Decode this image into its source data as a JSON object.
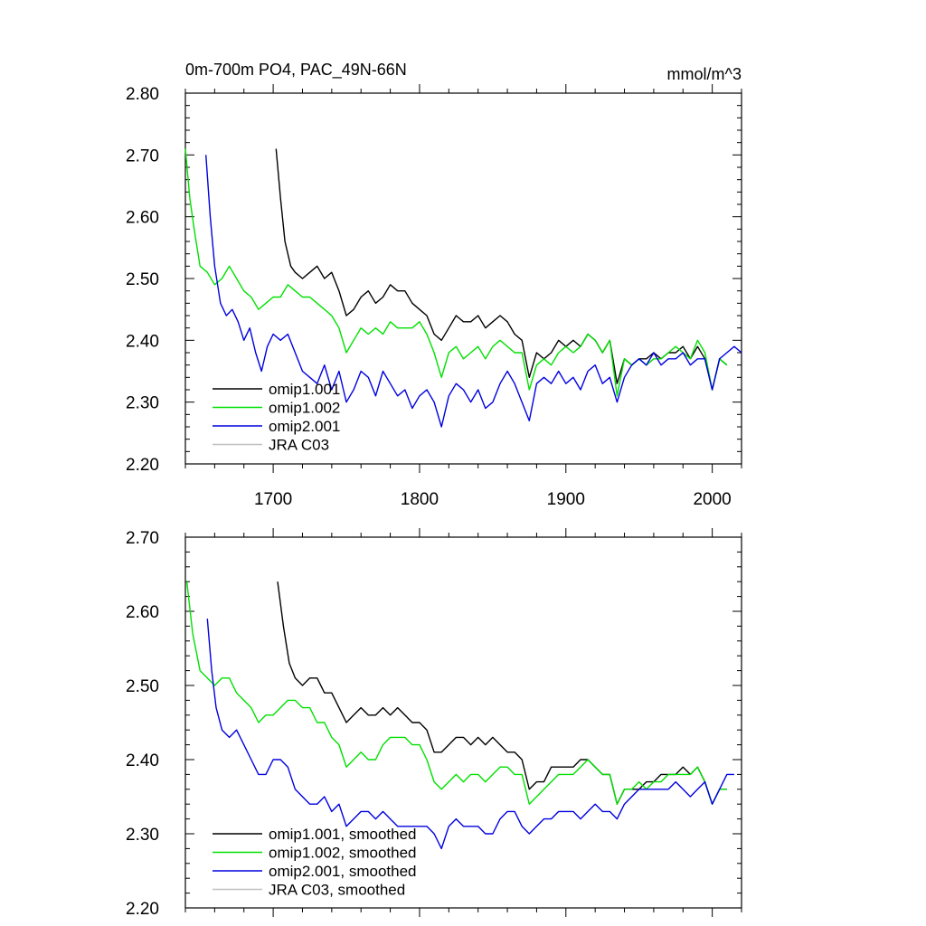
{
  "colors": {
    "omip1_001": "#000000",
    "omip1_002": "#00e000",
    "omip2_001": "#0000e0",
    "jra_c03": "#c0c0c0"
  },
  "chart_data": [
    {
      "type": "line",
      "title": "0m-700m PO4, PAC_49N-66N",
      "unit": "mmol/m^3",
      "xlim": [
        1640,
        2020
      ],
      "ylim": [
        2.2,
        2.8
      ],
      "xticks": [
        1700,
        1800,
        1900,
        2000
      ],
      "xtick_labels": [
        "1700",
        "1800",
        "1900",
        "2000"
      ],
      "yticks": [
        2.2,
        2.3,
        2.4,
        2.5,
        2.6,
        2.7,
        2.8
      ],
      "ytick_labels": [
        "2.20",
        "2.30",
        "2.40",
        "2.50",
        "2.60",
        "2.70",
        "2.80"
      ],
      "legend_position": "bottom-left",
      "grid": false,
      "series": [
        {
          "name": "omip1.001",
          "color_key": "omip1_001",
          "x": [
            1702,
            1705,
            1708,
            1712,
            1715,
            1720,
            1725,
            1730,
            1735,
            1740,
            1745,
            1750,
            1755,
            1760,
            1765,
            1770,
            1775,
            1780,
            1785,
            1790,
            1795,
            1800,
            1805,
            1810,
            1815,
            1820,
            1825,
            1830,
            1835,
            1840,
            1845,
            1850,
            1855,
            1860,
            1865,
            1870,
            1875,
            1880,
            1885,
            1890,
            1895,
            1900,
            1905,
            1910,
            1915,
            1920,
            1925,
            1930,
            1935,
            1940,
            1945,
            1950,
            1955,
            1960,
            1965,
            1970,
            1975,
            1980,
            1985,
            1990,
            1995,
            2000,
            2005,
            2010
          ],
          "y": [
            2.71,
            2.63,
            2.56,
            2.52,
            2.51,
            2.5,
            2.51,
            2.52,
            2.5,
            2.51,
            2.48,
            2.44,
            2.45,
            2.47,
            2.48,
            2.46,
            2.47,
            2.49,
            2.48,
            2.48,
            2.46,
            2.45,
            2.44,
            2.41,
            2.4,
            2.42,
            2.44,
            2.43,
            2.43,
            2.44,
            2.42,
            2.43,
            2.44,
            2.43,
            2.41,
            2.4,
            2.34,
            2.38,
            2.37,
            2.38,
            2.4,
            2.39,
            2.4,
            2.39,
            2.41,
            2.4,
            2.38,
            2.4,
            2.33,
            2.37,
            2.36,
            2.37,
            2.37,
            2.38,
            2.37,
            2.38,
            2.38,
            2.39,
            2.37,
            2.39,
            2.37,
            2.32,
            2.37,
            2.36
          ]
        },
        {
          "name": "omip1.002",
          "color_key": "omip1_002",
          "x": [
            1640,
            1643,
            1646,
            1650,
            1655,
            1660,
            1665,
            1670,
            1675,
            1680,
            1685,
            1690,
            1695,
            1700,
            1705,
            1710,
            1715,
            1720,
            1725,
            1730,
            1735,
            1740,
            1745,
            1750,
            1755,
            1760,
            1765,
            1770,
            1775,
            1780,
            1785,
            1790,
            1795,
            1800,
            1805,
            1810,
            1815,
            1820,
            1825,
            1830,
            1835,
            1840,
            1845,
            1850,
            1855,
            1860,
            1865,
            1870,
            1875,
            1880,
            1885,
            1890,
            1895,
            1900,
            1905,
            1910,
            1915,
            1920,
            1925,
            1930,
            1935,
            1940,
            1945,
            1950,
            1955,
            1960,
            1965,
            1970,
            1975,
            1980,
            1985,
            1990,
            1995,
            2000,
            2005,
            2010
          ],
          "y": [
            2.71,
            2.63,
            2.58,
            2.52,
            2.51,
            2.49,
            2.5,
            2.52,
            2.5,
            2.48,
            2.47,
            2.45,
            2.46,
            2.47,
            2.47,
            2.49,
            2.48,
            2.47,
            2.47,
            2.46,
            2.45,
            2.44,
            2.42,
            2.38,
            2.4,
            2.42,
            2.41,
            2.42,
            2.41,
            2.43,
            2.42,
            2.42,
            2.42,
            2.43,
            2.41,
            2.38,
            2.34,
            2.38,
            2.39,
            2.37,
            2.38,
            2.39,
            2.37,
            2.39,
            2.4,
            2.39,
            2.38,
            2.38,
            2.32,
            2.36,
            2.37,
            2.36,
            2.38,
            2.39,
            2.38,
            2.39,
            2.41,
            2.4,
            2.38,
            2.4,
            2.31,
            2.37,
            2.36,
            2.37,
            2.36,
            2.37,
            2.37,
            2.38,
            2.39,
            2.38,
            2.37,
            2.4,
            2.38,
            2.32,
            2.37,
            2.36
          ]
        },
        {
          "name": "omip2.001",
          "color_key": "omip2_001",
          "x": [
            1654,
            1657,
            1660,
            1664,
            1668,
            1672,
            1676,
            1680,
            1684,
            1688,
            1692,
            1696,
            1700,
            1705,
            1710,
            1715,
            1720,
            1725,
            1730,
            1735,
            1740,
            1745,
            1750,
            1755,
            1760,
            1765,
            1770,
            1775,
            1780,
            1785,
            1790,
            1795,
            1800,
            1805,
            1810,
            1815,
            1820,
            1825,
            1830,
            1835,
            1840,
            1845,
            1850,
            1855,
            1860,
            1865,
            1870,
            1875,
            1880,
            1885,
            1890,
            1895,
            1900,
            1905,
            1910,
            1915,
            1920,
            1925,
            1930,
            1935,
            1940,
            1945,
            1950,
            1955,
            1960,
            1965,
            1970,
            1975,
            1980,
            1985,
            1990,
            1995,
            2000,
            2005,
            2010,
            2015,
            2020
          ],
          "y": [
            2.7,
            2.6,
            2.52,
            2.46,
            2.44,
            2.45,
            2.43,
            2.4,
            2.42,
            2.38,
            2.35,
            2.39,
            2.41,
            2.4,
            2.41,
            2.38,
            2.35,
            2.34,
            2.33,
            2.36,
            2.32,
            2.35,
            2.3,
            2.32,
            2.35,
            2.34,
            2.31,
            2.35,
            2.33,
            2.31,
            2.32,
            2.29,
            2.31,
            2.32,
            2.3,
            2.26,
            2.31,
            2.33,
            2.32,
            2.3,
            2.32,
            2.29,
            2.3,
            2.33,
            2.35,
            2.33,
            2.3,
            2.27,
            2.33,
            2.34,
            2.33,
            2.35,
            2.33,
            2.34,
            2.32,
            2.35,
            2.36,
            2.33,
            2.34,
            2.3,
            2.34,
            2.36,
            2.37,
            2.36,
            2.38,
            2.36,
            2.37,
            2.37,
            2.38,
            2.36,
            2.37,
            2.37,
            2.32,
            2.37,
            2.38,
            2.39,
            2.38
          ]
        },
        {
          "name": "JRA C03",
          "color_key": "jra_c03",
          "x": [],
          "y": []
        }
      ]
    },
    {
      "type": "line",
      "title": "",
      "xlim": [
        1640,
        2020
      ],
      "ylim": [
        2.2,
        2.7
      ],
      "xticks": [
        1700,
        1800,
        1900,
        2000
      ],
      "xtick_labels": [],
      "yticks": [
        2.2,
        2.3,
        2.4,
        2.5,
        2.6,
        2.7
      ],
      "ytick_labels": [
        "2.20",
        "2.30",
        "2.40",
        "2.50",
        "2.60",
        "2.70"
      ],
      "legend_position": "bottom-left",
      "grid": false,
      "series": [
        {
          "name": "omip1.001, smoothed",
          "color_key": "omip1_001",
          "x": [
            1703,
            1707,
            1711,
            1715,
            1720,
            1725,
            1730,
            1735,
            1740,
            1745,
            1750,
            1755,
            1760,
            1765,
            1770,
            1775,
            1780,
            1785,
            1790,
            1795,
            1800,
            1805,
            1810,
            1815,
            1820,
            1825,
            1830,
            1835,
            1840,
            1845,
            1850,
            1855,
            1860,
            1865,
            1870,
            1875,
            1880,
            1885,
            1890,
            1895,
            1900,
            1905,
            1910,
            1915,
            1920,
            1925,
            1930,
            1935,
            1940,
            1945,
            1950,
            1955,
            1960,
            1965,
            1970,
            1975,
            1980,
            1985,
            1990,
            1995,
            2000,
            2005,
            2010
          ],
          "y": [
            2.64,
            2.58,
            2.53,
            2.51,
            2.5,
            2.51,
            2.51,
            2.49,
            2.49,
            2.47,
            2.45,
            2.46,
            2.47,
            2.46,
            2.46,
            2.47,
            2.46,
            2.47,
            2.46,
            2.45,
            2.45,
            2.44,
            2.41,
            2.41,
            2.42,
            2.43,
            2.43,
            2.42,
            2.43,
            2.42,
            2.43,
            2.42,
            2.41,
            2.41,
            2.4,
            2.36,
            2.37,
            2.37,
            2.39,
            2.39,
            2.39,
            2.39,
            2.4,
            2.4,
            2.39,
            2.38,
            2.38,
            2.34,
            2.36,
            2.36,
            2.36,
            2.37,
            2.37,
            2.38,
            2.38,
            2.38,
            2.39,
            2.38,
            2.39,
            2.37,
            2.34,
            2.36,
            2.36
          ]
        },
        {
          "name": "omip1.002, smoothed",
          "color_key": "omip1_002",
          "x": [
            1641,
            1645,
            1650,
            1655,
            1660,
            1665,
            1670,
            1675,
            1680,
            1685,
            1690,
            1695,
            1700,
            1705,
            1710,
            1715,
            1720,
            1725,
            1730,
            1735,
            1740,
            1745,
            1750,
            1755,
            1760,
            1765,
            1770,
            1775,
            1780,
            1785,
            1790,
            1795,
            1800,
            1805,
            1810,
            1815,
            1820,
            1825,
            1830,
            1835,
            1840,
            1845,
            1850,
            1855,
            1860,
            1865,
            1870,
            1875,
            1880,
            1885,
            1890,
            1895,
            1900,
            1905,
            1910,
            1915,
            1920,
            1925,
            1930,
            1935,
            1940,
            1945,
            1950,
            1955,
            1960,
            1965,
            1970,
            1975,
            1980,
            1985,
            1990,
            1995,
            2000,
            2005,
            2010
          ],
          "y": [
            2.64,
            2.57,
            2.52,
            2.51,
            2.5,
            2.51,
            2.51,
            2.49,
            2.48,
            2.47,
            2.45,
            2.46,
            2.46,
            2.47,
            2.48,
            2.48,
            2.47,
            2.47,
            2.45,
            2.45,
            2.43,
            2.42,
            2.39,
            2.4,
            2.41,
            2.4,
            2.4,
            2.42,
            2.43,
            2.43,
            2.43,
            2.42,
            2.42,
            2.4,
            2.37,
            2.36,
            2.37,
            2.38,
            2.37,
            2.38,
            2.38,
            2.37,
            2.38,
            2.39,
            2.39,
            2.38,
            2.38,
            2.34,
            2.35,
            2.36,
            2.37,
            2.38,
            2.38,
            2.38,
            2.39,
            2.4,
            2.39,
            2.38,
            2.38,
            2.34,
            2.36,
            2.36,
            2.37,
            2.36,
            2.37,
            2.37,
            2.38,
            2.38,
            2.38,
            2.38,
            2.39,
            2.37,
            2.34,
            2.36,
            2.36
          ]
        },
        {
          "name": "omip2.001, smoothed",
          "color_key": "omip2_001",
          "x": [
            1655,
            1658,
            1661,
            1665,
            1670,
            1675,
            1680,
            1685,
            1690,
            1695,
            1700,
            1705,
            1710,
            1715,
            1720,
            1725,
            1730,
            1735,
            1740,
            1745,
            1750,
            1755,
            1760,
            1765,
            1770,
            1775,
            1780,
            1785,
            1790,
            1795,
            1800,
            1805,
            1810,
            1815,
            1820,
            1825,
            1830,
            1835,
            1840,
            1845,
            1850,
            1855,
            1860,
            1865,
            1870,
            1875,
            1880,
            1885,
            1890,
            1895,
            1900,
            1905,
            1910,
            1915,
            1920,
            1925,
            1930,
            1935,
            1940,
            1945,
            1950,
            1955,
            1960,
            1965,
            1970,
            1975,
            1980,
            1985,
            1990,
            1995,
            2000,
            2005,
            2010,
            2015
          ],
          "y": [
            2.59,
            2.52,
            2.47,
            2.44,
            2.43,
            2.44,
            2.42,
            2.4,
            2.38,
            2.38,
            2.4,
            2.4,
            2.39,
            2.36,
            2.35,
            2.34,
            2.34,
            2.35,
            2.33,
            2.34,
            2.31,
            2.32,
            2.33,
            2.33,
            2.32,
            2.33,
            2.32,
            2.31,
            2.31,
            2.31,
            2.31,
            2.31,
            2.3,
            2.28,
            2.31,
            2.32,
            2.31,
            2.31,
            2.31,
            2.3,
            2.3,
            2.32,
            2.33,
            2.33,
            2.31,
            2.3,
            2.31,
            2.32,
            2.32,
            2.33,
            2.33,
            2.33,
            2.32,
            2.33,
            2.34,
            2.33,
            2.33,
            2.32,
            2.34,
            2.35,
            2.36,
            2.36,
            2.36,
            2.36,
            2.36,
            2.37,
            2.36,
            2.35,
            2.36,
            2.37,
            2.34,
            2.36,
            2.38,
            2.38
          ]
        },
        {
          "name": "JRA C03, smoothed",
          "color_key": "jra_c03",
          "x": [],
          "y": []
        }
      ]
    }
  ]
}
